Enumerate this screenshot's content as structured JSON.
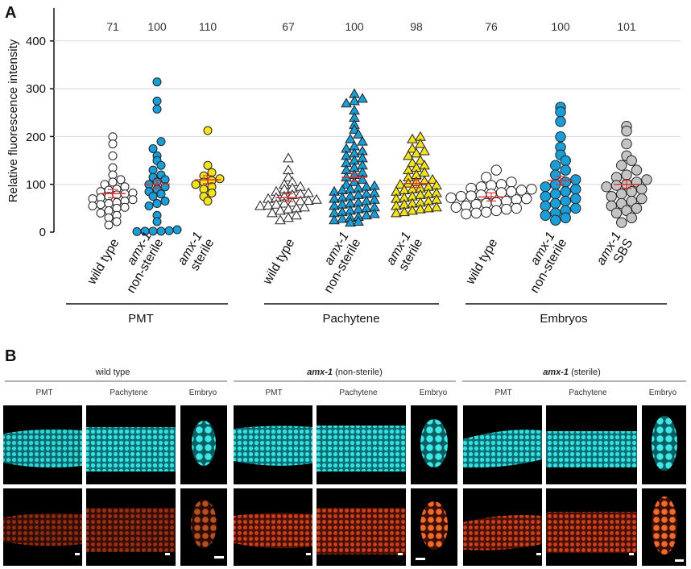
{
  "panel_a_label": "A",
  "panel_b_label": "B",
  "chart_data": {
    "type": "scatter",
    "ylabel": "Relative fluorescence intensity",
    "ylim": [
      0,
      470
    ],
    "yticks": [
      0,
      100,
      200,
      300,
      400
    ],
    "grid": true,
    "groups": [
      {
        "name": "PMT",
        "categories": [
          {
            "label_lines": [
              "wild type"
            ],
            "italic_lines": [
              false
            ],
            "n": "71",
            "marker": "circle",
            "color": "#ffffff",
            "values": [
              200,
              185,
              160,
              135,
              120,
              110,
              105,
              100,
              95,
              90,
              88,
              85,
              82,
              80,
              78,
              75,
              72,
              70,
              68,
              65,
              62,
              60,
              58,
              55,
              52,
              50,
              45,
              40,
              35,
              30,
              22,
              15
            ]
          },
          {
            "label_lines": [
              "amx-1",
              "non-sterile"
            ],
            "italic_lines": [
              true,
              false
            ],
            "n": "100",
            "marker": "circle",
            "color": "#1a9ed8",
            "values": [
              315,
              275,
              258,
              190,
              175,
              160,
              150,
              140,
              130,
              120,
              115,
              110,
              105,
              100,
              95,
              90,
              85,
              80,
              75,
              65,
              60,
              55,
              35,
              22,
              5,
              3,
              2,
              2,
              2,
              1
            ]
          },
          {
            "label_lines": [
              "amx-1",
              "sterile"
            ],
            "italic_lines": [
              true,
              false
            ],
            "n": "110",
            "marker": "circle",
            "color": "#f4e21a",
            "values": [
              213,
              140,
              125,
              118,
              112,
              108,
              105,
              100,
              95,
              90,
              82,
              75,
              65
            ]
          }
        ]
      },
      {
        "name": "Pachytene",
        "categories": [
          {
            "label_lines": [
              "wild type"
            ],
            "italic_lines": [
              false
            ],
            "n": "67",
            "marker": "triangle",
            "color": "#ffffff",
            "values": [
              155,
              130,
              115,
              105,
              100,
              95,
              92,
              90,
              85,
              82,
              80,
              78,
              75,
              72,
              70,
              68,
              66,
              65,
              62,
              60,
              58,
              56,
              55,
              52,
              50,
              48,
              45,
              40,
              35,
              30,
              25
            ]
          },
          {
            "label_lines": [
              "amx-1",
              "non-sterile"
            ],
            "italic_lines": [
              true,
              false
            ],
            "n": "100",
            "marker": "triangle",
            "color": "#1a9ed8",
            "values": [
              290,
              280,
              275,
              270,
              255,
              240,
              225,
              215,
              205,
              195,
              190,
              180,
              175,
              170,
              165,
              160,
              155,
              150,
              145,
              140,
              135,
              130,
              125,
              120,
              115,
              110,
              105,
              100,
              97,
              95,
              92,
              90,
              88,
              85,
              82,
              80,
              78,
              75,
              72,
              70,
              68,
              65,
              62,
              60,
              58,
              55,
              52,
              50,
              48,
              45,
              42,
              40,
              38,
              35,
              32,
              30,
              28,
              25,
              22,
              20
            ]
          },
          {
            "label_lines": [
              "amx-1",
              "sterile"
            ],
            "italic_lines": [
              true,
              false
            ],
            "n": "98",
            "marker": "triangle",
            "color": "#f4e21a",
            "values": [
              200,
              195,
              185,
              175,
              170,
              165,
              160,
              150,
              145,
              140,
              135,
              130,
              125,
              120,
              115,
              110,
              107,
              105,
              102,
              100,
              98,
              95,
              92,
              90,
              88,
              85,
              82,
              80,
              78,
              75,
              72,
              70,
              68,
              65,
              62,
              60,
              58,
              55,
              52,
              50,
              48,
              45,
              42,
              40
            ]
          }
        ]
      },
      {
        "name": "Embryos",
        "categories": [
          {
            "label_lines": [
              "wild type"
            ],
            "italic_lines": [
              false
            ],
            "n": "76",
            "marker": "circle",
            "color": "#ffffff",
            "values": [
              130,
              115,
              105,
              100,
              98,
              95,
              92,
              90,
              88,
              85,
              83,
              80,
              78,
              76,
              75,
              72,
              70,
              68,
              65,
              62,
              60,
              58,
              55,
              52,
              50,
              48,
              45,
              42,
              40,
              38
            ]
          },
          {
            "label_lines": [
              "amx-1",
              "non-sterile"
            ],
            "italic_lines": [
              true,
              false
            ],
            "n": "100",
            "marker": "circle",
            "color": "#1a9ed8",
            "values": [
              262,
              252,
              232,
              200,
              178,
              162,
              150,
              140,
              130,
              120,
              110,
              105,
              100,
              95,
              90,
              85,
              80,
              75,
              70,
              65,
              60,
              55,
              50,
              45,
              40,
              35,
              30,
              25
            ]
          },
          {
            "label_lines": [
              "amx-1",
              "SBS"
            ],
            "italic_lines": [
              true,
              false
            ],
            "n": "101",
            "marker": "circle",
            "color": "#c4c4c4",
            "values": [
              222,
              212,
              185,
              160,
              150,
              140,
              130,
              120,
              115,
              110,
              105,
              100,
              98,
              95,
              90,
              85,
              80,
              75,
              70,
              65,
              60,
              55,
              50,
              45,
              40,
              30,
              20
            ]
          }
        ]
      }
    ]
  },
  "panel_b": {
    "sections": [
      {
        "title": "wild type",
        "title_italic": "",
        "columns": [
          "PMT",
          "Pachytene",
          "Embryo"
        ]
      },
      {
        "title": " (non-sterile)",
        "title_italic": "amx-1",
        "columns": [
          "PMT",
          "Pachytene",
          "Embryo"
        ]
      },
      {
        "title": " (sterile)",
        "title_italic": "amx-1",
        "columns": [
          "PMT",
          "Pachytene",
          "Embryo"
        ]
      }
    ],
    "channel_colors": {
      "top": "#19c8c8",
      "bottom": "#e04a18"
    }
  }
}
